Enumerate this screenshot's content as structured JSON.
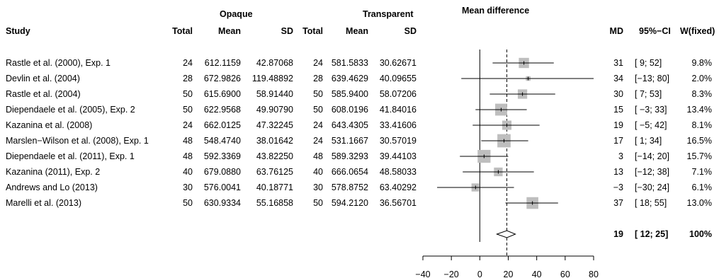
{
  "chart_data": {
    "type": "forest",
    "headers": {
      "study": "Study",
      "group1": "Opaque",
      "group2": "Transparent",
      "plot_title": "Mean difference",
      "total": "Total",
      "mean": "Mean",
      "sd": "SD",
      "md": "MD",
      "ci": "95%−CI",
      "weight": "W(fixed)"
    },
    "studies": [
      {
        "study": "Rastle et al. (2000), Exp. 1",
        "n1": "24",
        "mean1": "612.1159",
        "sd1": "42.87068",
        "n2": "24",
        "mean2": "581.5833",
        "sd2": "30.62671",
        "md_label": "31",
        "ci_label": "[  9; 52]",
        "weight_label": "9.8%",
        "md": 31,
        "lo": 9,
        "hi": 52,
        "weight": 9.8
      },
      {
        "study": "Devlin et al. (2004)",
        "n1": "28",
        "mean1": "672.9826",
        "sd1": "119.48892",
        "n2": "28",
        "mean2": "639.4629",
        "sd2": "40.09655",
        "md_label": "34",
        "ci_label": "[−13; 80]",
        "weight_label": "2.0%",
        "md": 34,
        "lo": -13,
        "hi": 80,
        "weight": 2.0
      },
      {
        "study": "Rastle et al. (2004)",
        "n1": "50",
        "mean1": "615.6900",
        "sd1": "58.91440",
        "n2": "50",
        "mean2": "585.9400",
        "sd2": "58.07206",
        "md_label": "30",
        "ci_label": "[  7; 53]",
        "weight_label": "8.3%",
        "md": 30,
        "lo": 7,
        "hi": 53,
        "weight": 8.3
      },
      {
        "study": "Diependaele et al. (2005), Exp. 2",
        "n1": "50",
        "mean1": "622.9568",
        "sd1": "49.90790",
        "n2": "50",
        "mean2": "608.0196",
        "sd2": "41.84016",
        "md_label": "15",
        "ci_label": "[ −3; 33]",
        "weight_label": "13.4%",
        "md": 15,
        "lo": -3,
        "hi": 33,
        "weight": 13.4
      },
      {
        "study": "Kazanina et al. (2008)",
        "n1": "24",
        "mean1": "662.0125",
        "sd1": "47.32245",
        "n2": "24",
        "mean2": "643.4305",
        "sd2": "33.41606",
        "md_label": "19",
        "ci_label": "[ −5; 42]",
        "weight_label": "8.1%",
        "md": 19,
        "lo": -5,
        "hi": 42,
        "weight": 8.1
      },
      {
        "study": "Marslen−Wilson et al. (2008), Exp. 1",
        "n1": "48",
        "mean1": "548.4740",
        "sd1": "38.01642",
        "n2": "24",
        "mean2": "531.1667",
        "sd2": "30.57019",
        "md_label": "17",
        "ci_label": "[  1; 34]",
        "weight_label": "16.5%",
        "md": 17,
        "lo": 1,
        "hi": 34,
        "weight": 16.5
      },
      {
        "study": "Diependaele et al. (2011), Exp. 1",
        "n1": "48",
        "mean1": "592.3369",
        "sd1": "43.82250",
        "n2": "48",
        "mean2": "589.3293",
        "sd2": "39.44103",
        "md_label": "3",
        "ci_label": "[−14; 20]",
        "weight_label": "15.7%",
        "md": 3,
        "lo": -14,
        "hi": 20,
        "weight": 15.7
      },
      {
        "study": "Kazanina (2011), Exp. 2",
        "n1": "40",
        "mean1": "679.0880",
        "sd1": "63.76125",
        "n2": "40",
        "mean2": "666.0654",
        "sd2": "48.58033",
        "md_label": "13",
        "ci_label": "[−12; 38]",
        "weight_label": "7.1%",
        "md": 13,
        "lo": -12,
        "hi": 38,
        "weight": 7.1
      },
      {
        "study": "Andrews and Lo (2013)",
        "n1": "30",
        "mean1": "576.0041",
        "sd1": "40.18771",
        "n2": "30",
        "mean2": "578.8752",
        "sd2": "63.40292",
        "md_label": "−3",
        "ci_label": "[−30; 24]",
        "weight_label": "6.1%",
        "md": -3,
        "lo": -30,
        "hi": 24,
        "weight": 6.1
      },
      {
        "study": "Marelli et al. (2013)",
        "n1": "50",
        "mean1": "630.9334",
        "sd1": "55.16858",
        "n2": "50",
        "mean2": "594.2120",
        "sd2": "36.56701",
        "md_label": "37",
        "ci_label": "[ 18; 55]",
        "weight_label": "13.0%",
        "md": 37,
        "lo": 18,
        "hi": 55,
        "weight": 13.0
      }
    ],
    "pooled": {
      "md_label": "19",
      "ci_label": "[ 12; 25]",
      "weight_label": "100%",
      "md": 19,
      "lo": 12,
      "hi": 25
    },
    "x_ticks": [
      "−40",
      "−20",
      "0",
      "20",
      "40",
      "60",
      "80"
    ],
    "x_tick_values": [
      -40,
      -20,
      0,
      20,
      40,
      60,
      80
    ],
    "xlim": [
      -40,
      80
    ],
    "reference_line": 0,
    "pooled_line": 19,
    "colors": {
      "box": "#bebebe",
      "line": "#000000"
    }
  }
}
